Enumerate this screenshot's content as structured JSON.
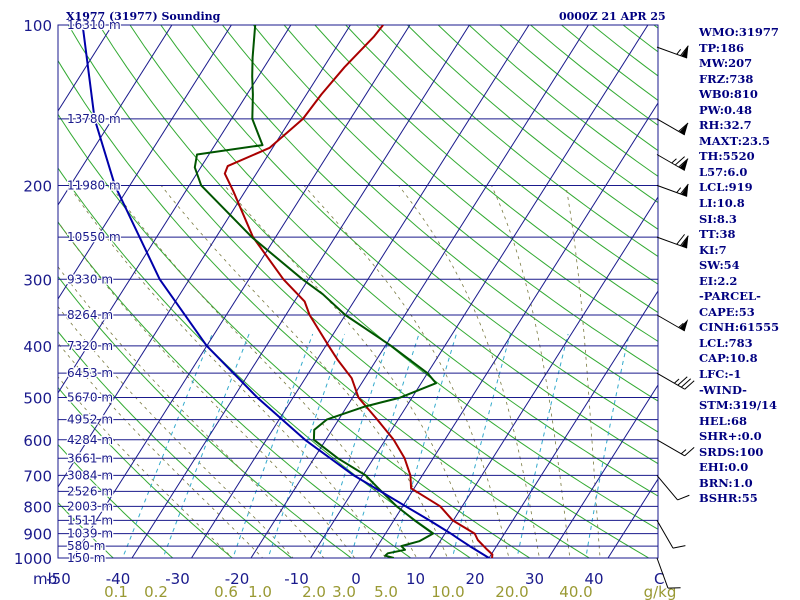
{
  "header": {
    "station": "X1977 (31977) Sounding",
    "time": "0000Z 21 APR 25"
  },
  "indices": [
    "WMO:31977",
    "TP:186",
    "MW:207",
    "FRZ:738",
    "WB0:810",
    "PW:0.48",
    "RH:32.7",
    "MAXT:23.5",
    "TH:5520",
    "L57:6.0",
    "LCL:919",
    "LI:10.8",
    "SI:8.3",
    "TT:38",
    "KI:7",
    "SW:54",
    "EI:2.2",
    "-PARCEL-",
    "CAPE:53",
    "CINH:61555",
    "LCL:783",
    "CAP:10.8",
    "LFC:-1",
    "-WIND-",
    "STM:319/14",
    "HEL:68",
    "SHR+:0.0",
    "SRDS:100",
    "EHI:0.0",
    "BRN:1.0",
    "BSHR:55"
  ],
  "chart_data": {
    "type": "line",
    "chart_kind": "skew-T log-P sounding",
    "pressure_labels": [
      "100",
      "200",
      "300",
      "400",
      "500",
      "600",
      "700",
      "800",
      "900",
      "1000"
    ],
    "pressure_unit": "mb",
    "temperature_labels": [
      "-50",
      "-40",
      "-30",
      "-20",
      "-10",
      "0",
      "10",
      "20",
      "30",
      "40"
    ],
    "temperature_unit": "C",
    "mixing_ratio_labels": [
      "0.1",
      "0.2",
      "0.6",
      "1.0",
      "2.0",
      "3.0",
      "5.0",
      "10.0",
      "20.0",
      "40.0"
    ],
    "mixing_ratio_unit": "g/kg",
    "height_labels": [
      {
        "p": 100,
        "label": "16310 m"
      },
      {
        "p": 150,
        "label": "13780 m"
      },
      {
        "p": 200,
        "label": "11980 m"
      },
      {
        "p": 250,
        "label": "10550 m"
      },
      {
        "p": 300,
        "label": "9330 m"
      },
      {
        "p": 350,
        "label": "8264 m"
      },
      {
        "p": 400,
        "label": "7320 m"
      },
      {
        "p": 450,
        "label": "6453 m"
      },
      {
        "p": 500,
        "label": "5670 m"
      },
      {
        "p": 550,
        "label": "4952 m"
      },
      {
        "p": 600,
        "label": "4284 m"
      },
      {
        "p": 650,
        "label": "3661 m"
      },
      {
        "p": 700,
        "label": "3084 m"
      },
      {
        "p": 750,
        "label": "2526 m"
      },
      {
        "p": 800,
        "label": "2003 m"
      },
      {
        "p": 850,
        "label": "1511 m"
      },
      {
        "p": 900,
        "label": "1039 m"
      },
      {
        "p": 950,
        "label": "580 m"
      },
      {
        "p": 1000,
        "label": "150 m"
      }
    ],
    "series": [
      {
        "role": "temperature",
        "color": "#aa0000",
        "points": [
          [
            1000,
            20.5
          ],
          [
            985,
            20.2
          ],
          [
            960,
            18.5
          ],
          [
            925,
            16.2
          ],
          [
            900,
            15.0
          ],
          [
            850,
            9.9
          ],
          [
            800,
            6.3
          ],
          [
            740,
            -0.5
          ],
          [
            700,
            -2.0
          ],
          [
            650,
            -4.8
          ],
          [
            600,
            -8.6
          ],
          [
            550,
            -13.5
          ],
          [
            500,
            -19.0
          ],
          [
            460,
            -22.2
          ],
          [
            425,
            -26.5
          ],
          [
            400,
            -29.5
          ],
          [
            350,
            -36.0
          ],
          [
            330,
            -38.3
          ],
          [
            300,
            -44.2
          ],
          [
            250,
            -53.8
          ],
          [
            205,
            -62.0
          ],
          [
            190,
            -65.3
          ],
          [
            184,
            -65.6
          ],
          [
            170,
            -60.5
          ],
          [
            150,
            -58.0
          ],
          [
            135,
            -57.5
          ],
          [
            120,
            -56.5
          ],
          [
            105,
            -54.8
          ],
          [
            100,
            -54.5
          ]
        ]
      },
      {
        "role": "dewpoint",
        "color": "#005500",
        "points": [
          [
            1000,
            4.0
          ],
          [
            990,
            2.3
          ],
          [
            980,
            2.5
          ],
          [
            965,
            5.0
          ],
          [
            950,
            4.0
          ],
          [
            930,
            6.5
          ],
          [
            900,
            8.0
          ],
          [
            850,
            3.5
          ],
          [
            800,
            -1.0
          ],
          [
            740,
            -6.0
          ],
          [
            700,
            -9.5
          ],
          [
            650,
            -16.0
          ],
          [
            600,
            -22.0
          ],
          [
            575,
            -23.0
          ],
          [
            550,
            -22.0
          ],
          [
            520,
            -17.0
          ],
          [
            500,
            -12.0
          ],
          [
            470,
            -7.5
          ],
          [
            450,
            -10.0
          ],
          [
            400,
            -19.0
          ],
          [
            350,
            -30.0
          ],
          [
            320,
            -36.0
          ],
          [
            300,
            -41.0
          ],
          [
            250,
            -54.0
          ],
          [
            200,
            -68.0
          ],
          [
            185,
            -71.0
          ],
          [
            175,
            -72.0
          ],
          [
            168,
            -62.0
          ],
          [
            150,
            -66.5
          ],
          [
            135,
            -69.0
          ],
          [
            125,
            -71.0
          ],
          [
            115,
            -73.0
          ],
          [
            100,
            -76.0
          ]
        ]
      },
      {
        "role": "parcel",
        "color": "#0000aa",
        "points": [
          [
            1000,
            20.0
          ],
          [
            950,
            15.5
          ],
          [
            920,
            12.8
          ],
          [
            900,
            11.0
          ],
          [
            850,
            6.0
          ],
          [
            800,
            0.5
          ],
          [
            700,
            -11.5
          ],
          [
            600,
            -23.5
          ],
          [
            500,
            -36.0
          ],
          [
            400,
            -50.0
          ],
          [
            300,
            -65.0
          ],
          [
            200,
            -82.5
          ],
          [
            150,
            -93.0
          ],
          [
            100,
            -105.0
          ]
        ]
      }
    ],
    "wind_profile": [
      {
        "p": 110,
        "dir": 290,
        "kt": 65
      },
      {
        "p": 150,
        "dir": 300,
        "kt": 60
      },
      {
        "p": 175,
        "dir": 300,
        "kt": 75
      },
      {
        "p": 200,
        "dir": 290,
        "kt": 65
      },
      {
        "p": 250,
        "dir": 290,
        "kt": 70
      },
      {
        "p": 350,
        "dir": 300,
        "kt": 55
      },
      {
        "p": 450,
        "dir": 300,
        "kt": 35
      },
      {
        "p": 600,
        "dir": 300,
        "kt": 15
      },
      {
        "p": 700,
        "dir": 320,
        "kt": 10
      },
      {
        "p": 850,
        "dir": 330,
        "kt": 10
      },
      {
        "p": 1000,
        "dir": 340,
        "kt": 10
      }
    ],
    "grid": true
  }
}
